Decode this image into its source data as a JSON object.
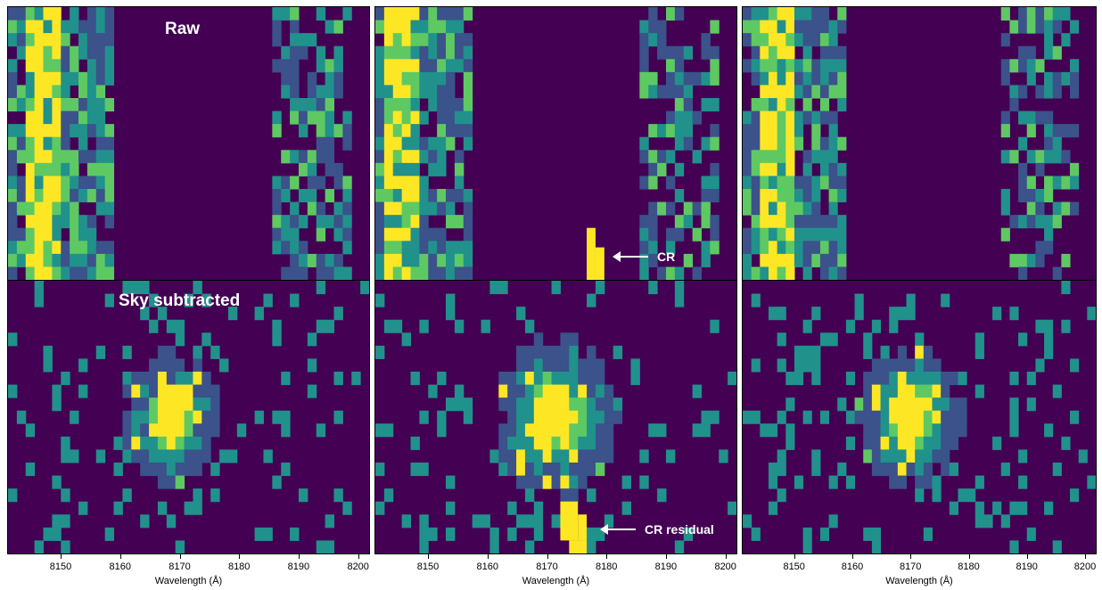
{
  "colors": {
    "viridis": [
      "#440154",
      "#3b528b",
      "#21918c",
      "#5ec962",
      "#fde725"
    ]
  },
  "labels": {
    "raw": "Raw",
    "sky_subtracted": "Sky subtracted",
    "cr": "CR",
    "cr_residual": "CR residual"
  },
  "chart_data": {
    "type": "heatmap",
    "xlabel": "Wavelength (Å)",
    "xlim": [
      8141,
      8202
    ],
    "xticks": [
      8150,
      8160,
      8170,
      8180,
      8190,
      8200
    ],
    "xtick_labels": [
      "8150",
      "8160",
      "8170",
      "8180",
      "8190",
      "8200"
    ],
    "grid": false,
    "pixel_grid": {
      "columns": 41,
      "rows": 21
    },
    "colormap": "viridis",
    "panels": [
      {
        "row": "raw",
        "column": 1
      },
      {
        "row": "raw",
        "column": 2
      },
      {
        "row": "raw",
        "column": 3
      },
      {
        "row": "sky_subtracted",
        "column": 1
      },
      {
        "row": "sky_subtracted",
        "column": 2
      },
      {
        "row": "sky_subtracted",
        "column": 3
      }
    ]
  }
}
